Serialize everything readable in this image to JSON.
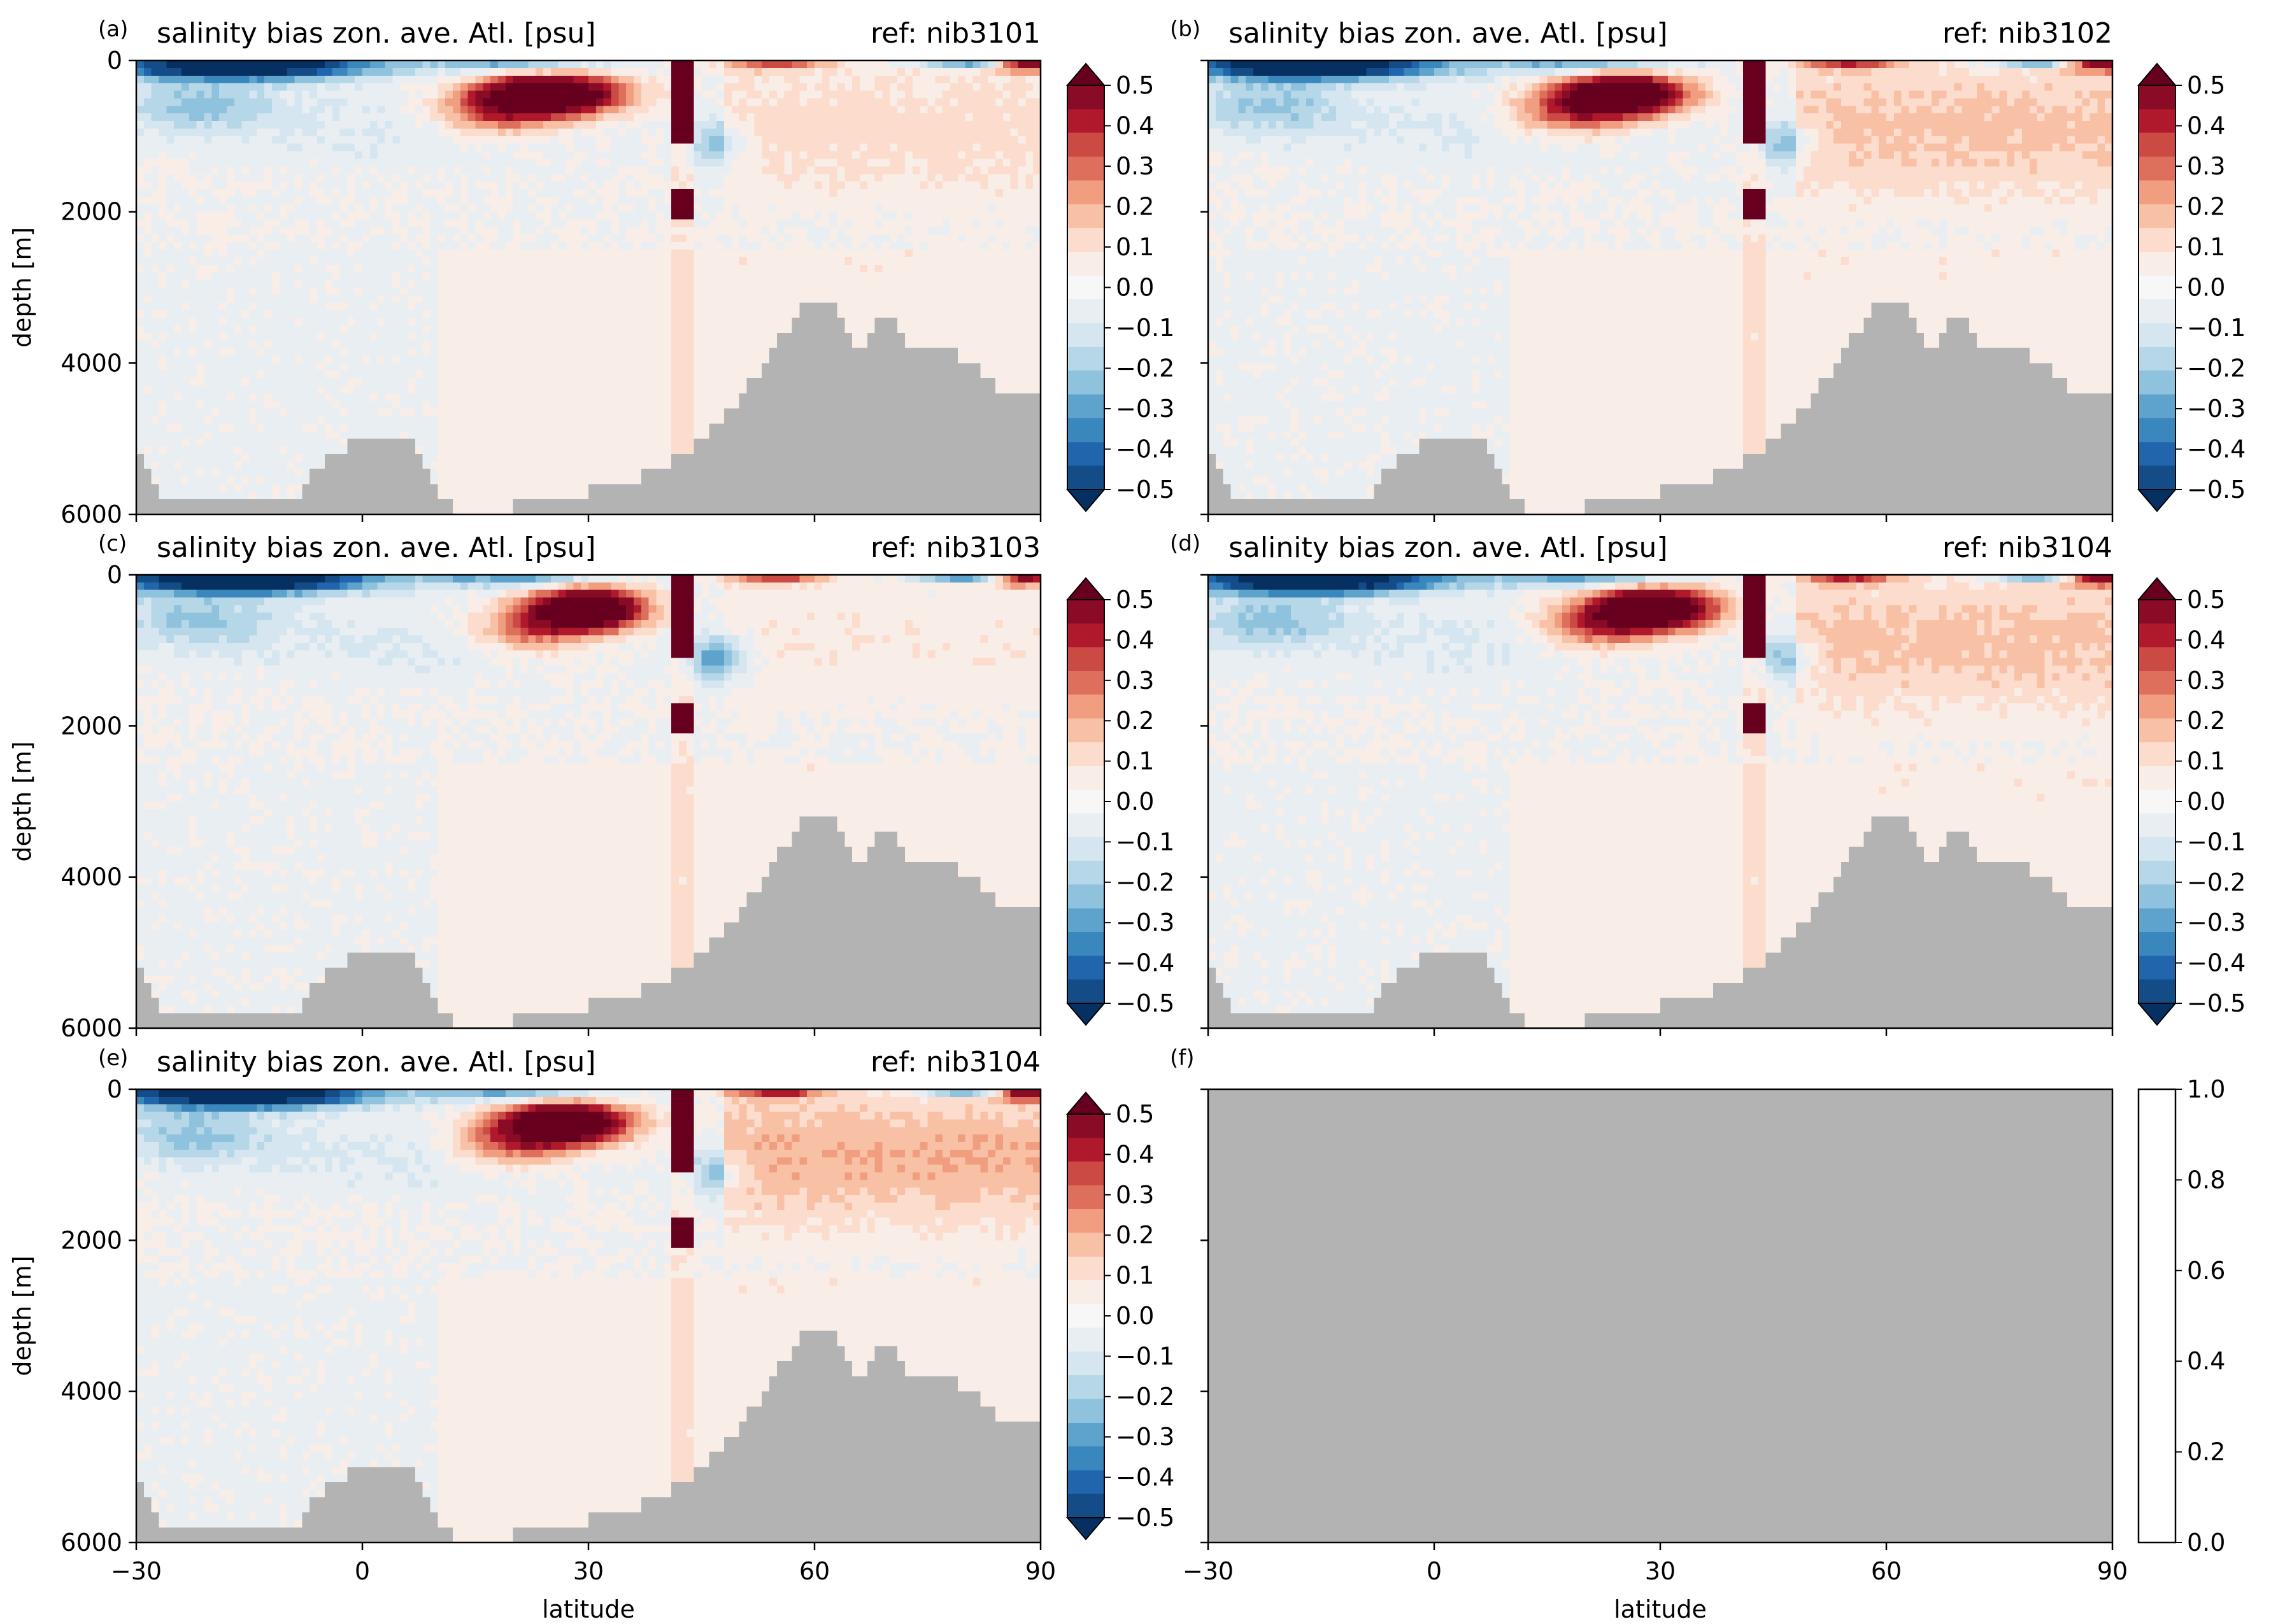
{
  "figure": {
    "colors": {
      "land": "#b3b3b3",
      "axis": "#000000",
      "cbar_levels": [
        "#053061",
        "#134c87",
        "#2166ac",
        "#3a87bd",
        "#5ea3cc",
        "#8fc2dd",
        "#b6d7e8",
        "#d6e6f0",
        "#e9eef2",
        "#f7f7f7",
        "#f8ede7",
        "#fbdccd",
        "#f8c0a5",
        "#f19e80",
        "#de6f5c",
        "#cb4a43",
        "#b0182c",
        "#8a0b25",
        "#67001f"
      ]
    },
    "colorbar_ticks": [
      "0.5",
      "0.4",
      "0.3",
      "0.2",
      "0.1",
      "0.0",
      "−0.1",
      "−0.2",
      "−0.3",
      "−0.4",
      "−0.5"
    ],
    "empty_colorbar_ticks": [
      "1.0",
      "0.8",
      "0.6",
      "0.4",
      "0.2",
      "0.0"
    ]
  },
  "chart_data": [
    {
      "panel": "(a)",
      "type": "heatmap",
      "title": "salinity bias zon. ave. Atl. [psu]",
      "ref_label": "ref: nib3101",
      "ylabel": "depth [m]",
      "xlabel": "",
      "xlim": [
        -30,
        90
      ],
      "ylim": [
        6000,
        0
      ],
      "y_tick_labels": [
        "0",
        "2000",
        "4000",
        "6000"
      ],
      "x_tick_labels": [],
      "colorbar_range": [
        -0.5,
        0.5
      ],
      "features": [
        {
          "kind": "fresh_bias",
          "lat": [
            -30,
            0
          ],
          "depth": [
            0,
            250
          ],
          "value": -0.5
        },
        {
          "kind": "fresh_bias",
          "lat": [
            -30,
            -10
          ],
          "depth": [
            300,
            800
          ],
          "value": -0.15
        },
        {
          "kind": "salty_bias_mediterranean",
          "lat": [
            15,
            43
          ],
          "depth": [
            100,
            900
          ],
          "value": 0.5
        },
        {
          "kind": "salty_bias_deep",
          "lat": [
            41,
            44
          ],
          "depth": [
            1600,
            2100
          ],
          "value": 0.5
        },
        {
          "kind": "salty_bias_north",
          "lat": [
            55,
            90
          ],
          "depth": [
            0,
            2000
          ],
          "value": 0.1
        }
      ]
    },
    {
      "panel": "(b)",
      "type": "heatmap",
      "title": "salinity bias zon. ave. Atl. [psu]",
      "ref_label": "ref: nib3102",
      "ylabel": "",
      "xlabel": "",
      "xlim": [
        -30,
        90
      ],
      "ylim": [
        6000,
        0
      ],
      "y_tick_labels": [],
      "x_tick_labels": [],
      "colorbar_range": [
        -0.5,
        0.5
      ],
      "features": [
        {
          "kind": "fresh_bias",
          "lat": [
            -30,
            0
          ],
          "depth": [
            0,
            250
          ],
          "value": -0.5
        },
        {
          "kind": "salty_bias_mediterranean",
          "lat": [
            15,
            43
          ],
          "depth": [
            100,
            900
          ],
          "value": 0.5
        },
        {
          "kind": "salty_bias_deep",
          "lat": [
            41,
            44
          ],
          "depth": [
            1600,
            2100
          ],
          "value": 0.5
        },
        {
          "kind": "salty_bias_north",
          "lat": [
            48,
            90
          ],
          "depth": [
            0,
            1500
          ],
          "value": 0.15
        }
      ]
    },
    {
      "panel": "(c)",
      "type": "heatmap",
      "title": "salinity bias zon. ave. Atl. [psu]",
      "ref_label": "ref: nib3103",
      "ylabel": "depth [m]",
      "xlabel": "",
      "xlim": [
        -30,
        90
      ],
      "ylim": [
        6000,
        0
      ],
      "y_tick_labels": [
        "0",
        "2000",
        "4000",
        "6000"
      ],
      "x_tick_labels": [],
      "colorbar_range": [
        -0.5,
        0.5
      ],
      "features": [
        {
          "kind": "fresh_bias",
          "lat": [
            -30,
            0
          ],
          "depth": [
            0,
            250
          ],
          "value": -0.5
        },
        {
          "kind": "salty_bias_mediterranean",
          "lat": [
            20,
            43
          ],
          "depth": [
            100,
            900
          ],
          "value": 0.5
        },
        {
          "kind": "salty_bias_deep",
          "lat": [
            41,
            44
          ],
          "depth": [
            1600,
            2100
          ],
          "value": 0.5
        },
        {
          "kind": "fresh_bias",
          "lat": [
            45,
            55
          ],
          "depth": [
            800,
            1700
          ],
          "value": -0.1
        }
      ]
    },
    {
      "panel": "(d)",
      "type": "heatmap",
      "title": "salinity bias zon. ave. Atl. [psu]",
      "ref_label": "ref: nib3104",
      "ylabel": "",
      "xlabel": "",
      "xlim": [
        -30,
        90
      ],
      "ylim": [
        6000,
        0
      ],
      "y_tick_labels": [],
      "x_tick_labels": [],
      "colorbar_range": [
        -0.5,
        0.5
      ],
      "features": [
        {
          "kind": "fresh_bias",
          "lat": [
            -30,
            0
          ],
          "depth": [
            0,
            250
          ],
          "value": -0.5
        },
        {
          "kind": "salty_bias_mediterranean",
          "lat": [
            20,
            43
          ],
          "depth": [
            100,
            800
          ],
          "value": 0.5
        },
        {
          "kind": "salty_bias_deep",
          "lat": [
            41,
            44
          ],
          "depth": [
            1600,
            2100
          ],
          "value": 0.5
        },
        {
          "kind": "salty_bias_north",
          "lat": [
            48,
            90
          ],
          "depth": [
            0,
            2000
          ],
          "value": 0.15
        }
      ]
    },
    {
      "panel": "(e)",
      "type": "heatmap",
      "title": "salinity bias zon. ave. Atl. [psu]",
      "ref_label": "ref: nib3104",
      "ylabel": "depth [m]",
      "xlabel": "latitude",
      "xlim": [
        -30,
        90
      ],
      "ylim": [
        6000,
        0
      ],
      "y_tick_labels": [
        "0",
        "2000",
        "4000",
        "6000"
      ],
      "x_tick_labels": [
        "−30",
        "0",
        "30",
        "60",
        "90"
      ],
      "colorbar_range": [
        -0.5,
        0.5
      ],
      "features": [
        {
          "kind": "fresh_bias",
          "lat": [
            -30,
            0
          ],
          "depth": [
            0,
            250
          ],
          "value": -0.5
        },
        {
          "kind": "salty_bias_mediterranean",
          "lat": [
            18,
            43
          ],
          "depth": [
            100,
            800
          ],
          "value": 0.5
        },
        {
          "kind": "salty_bias_deep",
          "lat": [
            41,
            44
          ],
          "depth": [
            1600,
            2100
          ],
          "value": 0.5
        },
        {
          "kind": "salty_bias_north",
          "lat": [
            48,
            80
          ],
          "depth": [
            0,
            2000
          ],
          "value": 0.2
        }
      ]
    },
    {
      "panel": "(f)",
      "type": "heatmap",
      "title": "",
      "ref_label": "",
      "ylabel": "",
      "xlabel": "latitude",
      "xlim": [
        -30,
        90
      ],
      "ylim": [
        6000,
        0
      ],
      "y_tick_labels": [],
      "x_tick_labels": [
        "−30",
        "0",
        "30",
        "60",
        "90"
      ],
      "colorbar_range": [
        0.0,
        1.0
      ],
      "empty": true
    }
  ]
}
